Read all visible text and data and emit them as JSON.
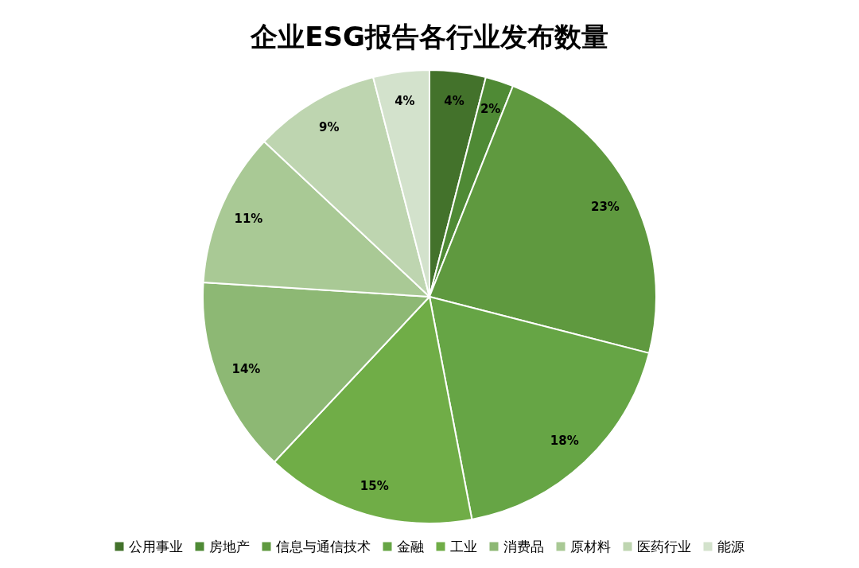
{
  "chart_data": {
    "type": "pie",
    "title": "企业ESG报告各行业发布数量",
    "categories": [
      "公用事业",
      "房地产",
      "信息与通信技术",
      "金融",
      "工业",
      "消费品",
      "原材料",
      "医药行业",
      "能源"
    ],
    "values": [
      4,
      2,
      23,
      18,
      15,
      14,
      11,
      9,
      4
    ],
    "colors": [
      "#43722b",
      "#4f8a35",
      "#5f993f",
      "#66a545",
      "#70ad47",
      "#8db874",
      "#a9c995",
      "#bed5b0",
      "#d3e2cc"
    ],
    "value_labels": [
      "4%",
      "2%",
      "23%",
      "18%",
      "15%",
      "14%",
      "11%",
      "9%",
      "4%"
    ],
    "legend": "bottom"
  }
}
